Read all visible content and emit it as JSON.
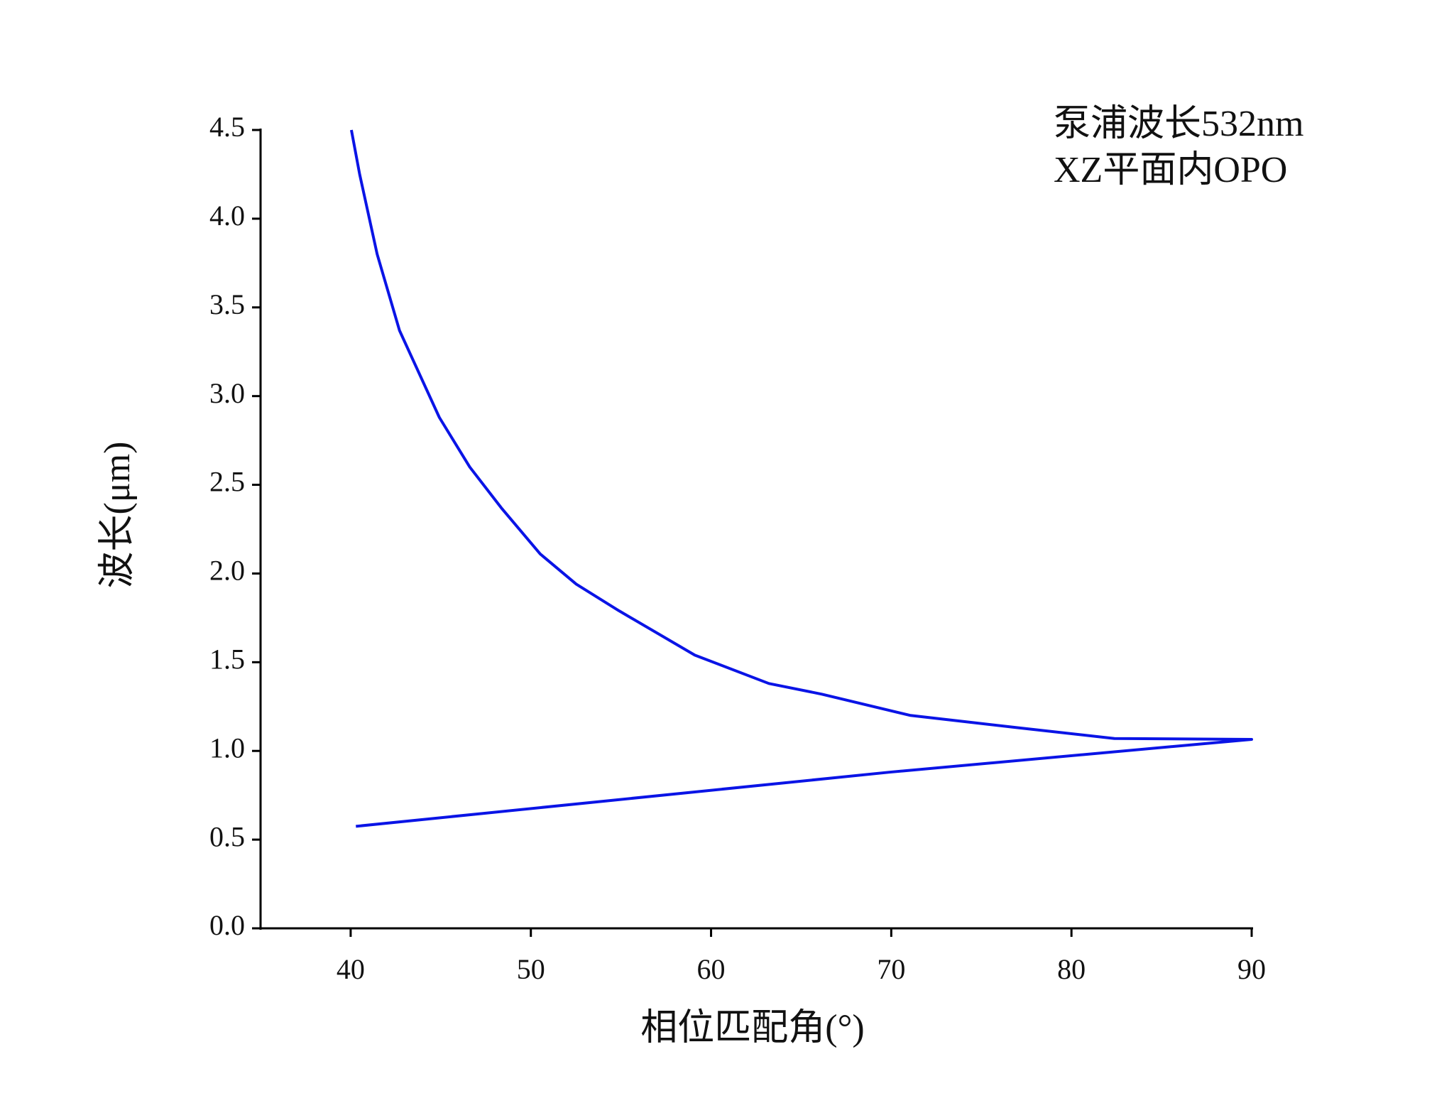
{
  "chart_data": {
    "type": "line",
    "xlabel": "相位匹配角(°)",
    "ylabel": "波长(μm)",
    "annotations": [
      "泵浦波长532nm",
      "XZ平面内OPO"
    ],
    "series": [
      {
        "color": "#0a14e6",
        "x": [
          40.04,
          40.5,
          41.47,
          42.71,
          44.92,
          46.61,
          48.36,
          50.52,
          52.52,
          54.89,
          59.1,
          63.21,
          66.14,
          71.07,
          77.09,
          82.38,
          90,
          69.89,
          40.29
        ],
        "values": [
          4.5,
          4.25,
          3.8,
          3.37,
          2.88,
          2.6,
          2.37,
          2.11,
          1.94,
          1.79,
          1.54,
          1.38,
          1.32,
          1.2,
          1.13,
          1.07,
          1.065,
          0.88,
          0.575
        ]
      }
    ],
    "xlim": [
      35,
      90
    ],
    "xticks": [
      40,
      50,
      60,
      70,
      80,
      90
    ],
    "ylim": [
      0,
      4.5
    ],
    "yticks": [
      {
        "value": 0,
        "label": "0.0"
      },
      0.5,
      {
        "value": 1,
        "label": "1.0"
      },
      1.5,
      {
        "value": 2,
        "label": "2.0"
      },
      2.5,
      {
        "value": 3,
        "label": "3.0"
      },
      3.5,
      {
        "value": 4,
        "label": "4.0"
      },
      4.5
    ]
  }
}
